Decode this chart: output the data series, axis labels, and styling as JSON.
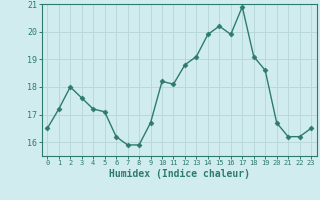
{
  "xlabel": "Humidex (Indice chaleur)",
  "x": [
    0,
    1,
    2,
    3,
    4,
    5,
    6,
    7,
    8,
    9,
    10,
    11,
    12,
    13,
    14,
    15,
    16,
    17,
    18,
    19,
    20,
    21,
    22,
    23
  ],
  "y": [
    16.5,
    17.2,
    18.0,
    17.6,
    17.2,
    17.1,
    16.2,
    15.9,
    15.9,
    16.7,
    18.2,
    18.1,
    18.8,
    19.1,
    19.9,
    20.2,
    19.9,
    20.9,
    19.1,
    18.6,
    16.7,
    16.2,
    16.2,
    16.5
  ],
  "line_color": "#2d7b6f",
  "marker_color": "#2d7b6f",
  "bg_color": "#d0ecee",
  "grid_color": "#b8d8da",
  "axis_color": "#2d7b6f",
  "tick_color": "#2d7b6f",
  "label_color": "#2d7b6f",
  "ylim": [
    15.5,
    21.0
  ],
  "yticks": [
    16,
    17,
    18,
    19,
    20,
    21
  ],
  "xticks": [
    0,
    1,
    2,
    3,
    4,
    5,
    6,
    7,
    8,
    9,
    10,
    11,
    12,
    13,
    14,
    15,
    16,
    17,
    18,
    19,
    20,
    21,
    22,
    23
  ],
  "linewidth": 1.0,
  "markersize": 2.5
}
